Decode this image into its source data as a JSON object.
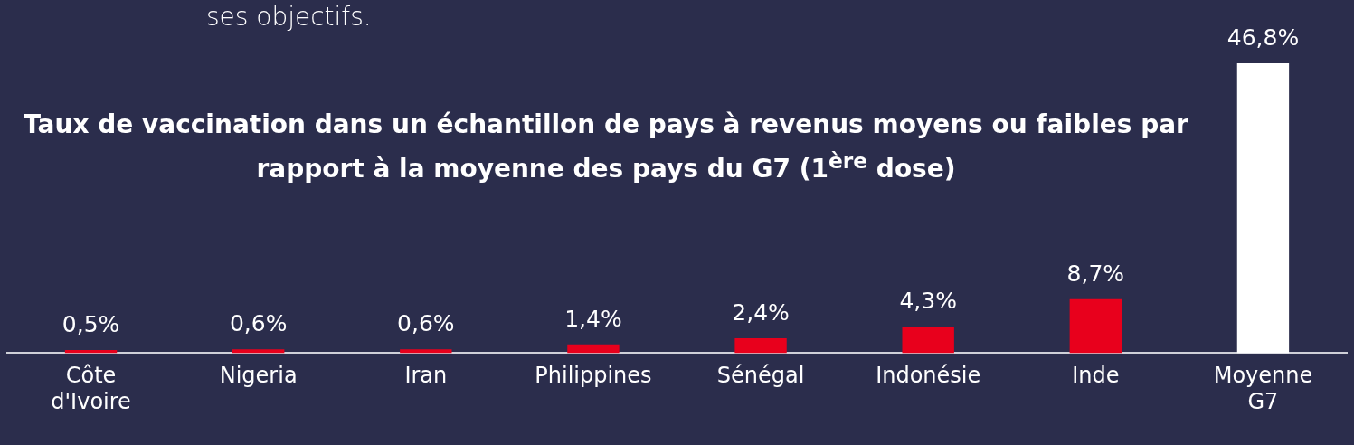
{
  "chart_data": {
    "type": "bar",
    "title": "Taux de vaccination dans un échantillon de pays à revenus moyens ou faibles par rapport à la moyenne des pays du G7 (1$^{ère}$ dose)",
    "annotations": [
      "ses objectifs."
    ],
    "categories": [
      "Côte d'Ivoire",
      "Nigeria",
      "Iran",
      "Philippines",
      "Sénégal",
      "Indonésie",
      "Inde",
      "Moyenne G7"
    ],
    "values": [
      0.5,
      0.6,
      0.6,
      1.4,
      2.4,
      4.3,
      8.7,
      46.8
    ],
    "colors": [
      "#e8001c",
      "#e8001c",
      "#e8001c",
      "#e8001c",
      "#e8001c",
      "#e8001c",
      "#e8001c",
      "#ffffff"
    ],
    "value_labels": [
      "0,5%",
      "0,6%",
      "0,6%",
      "1,4%",
      "2,4%",
      "4,3%",
      "8,7%",
      "46,8%"
    ],
    "grid": false,
    "legend": false
  }
}
